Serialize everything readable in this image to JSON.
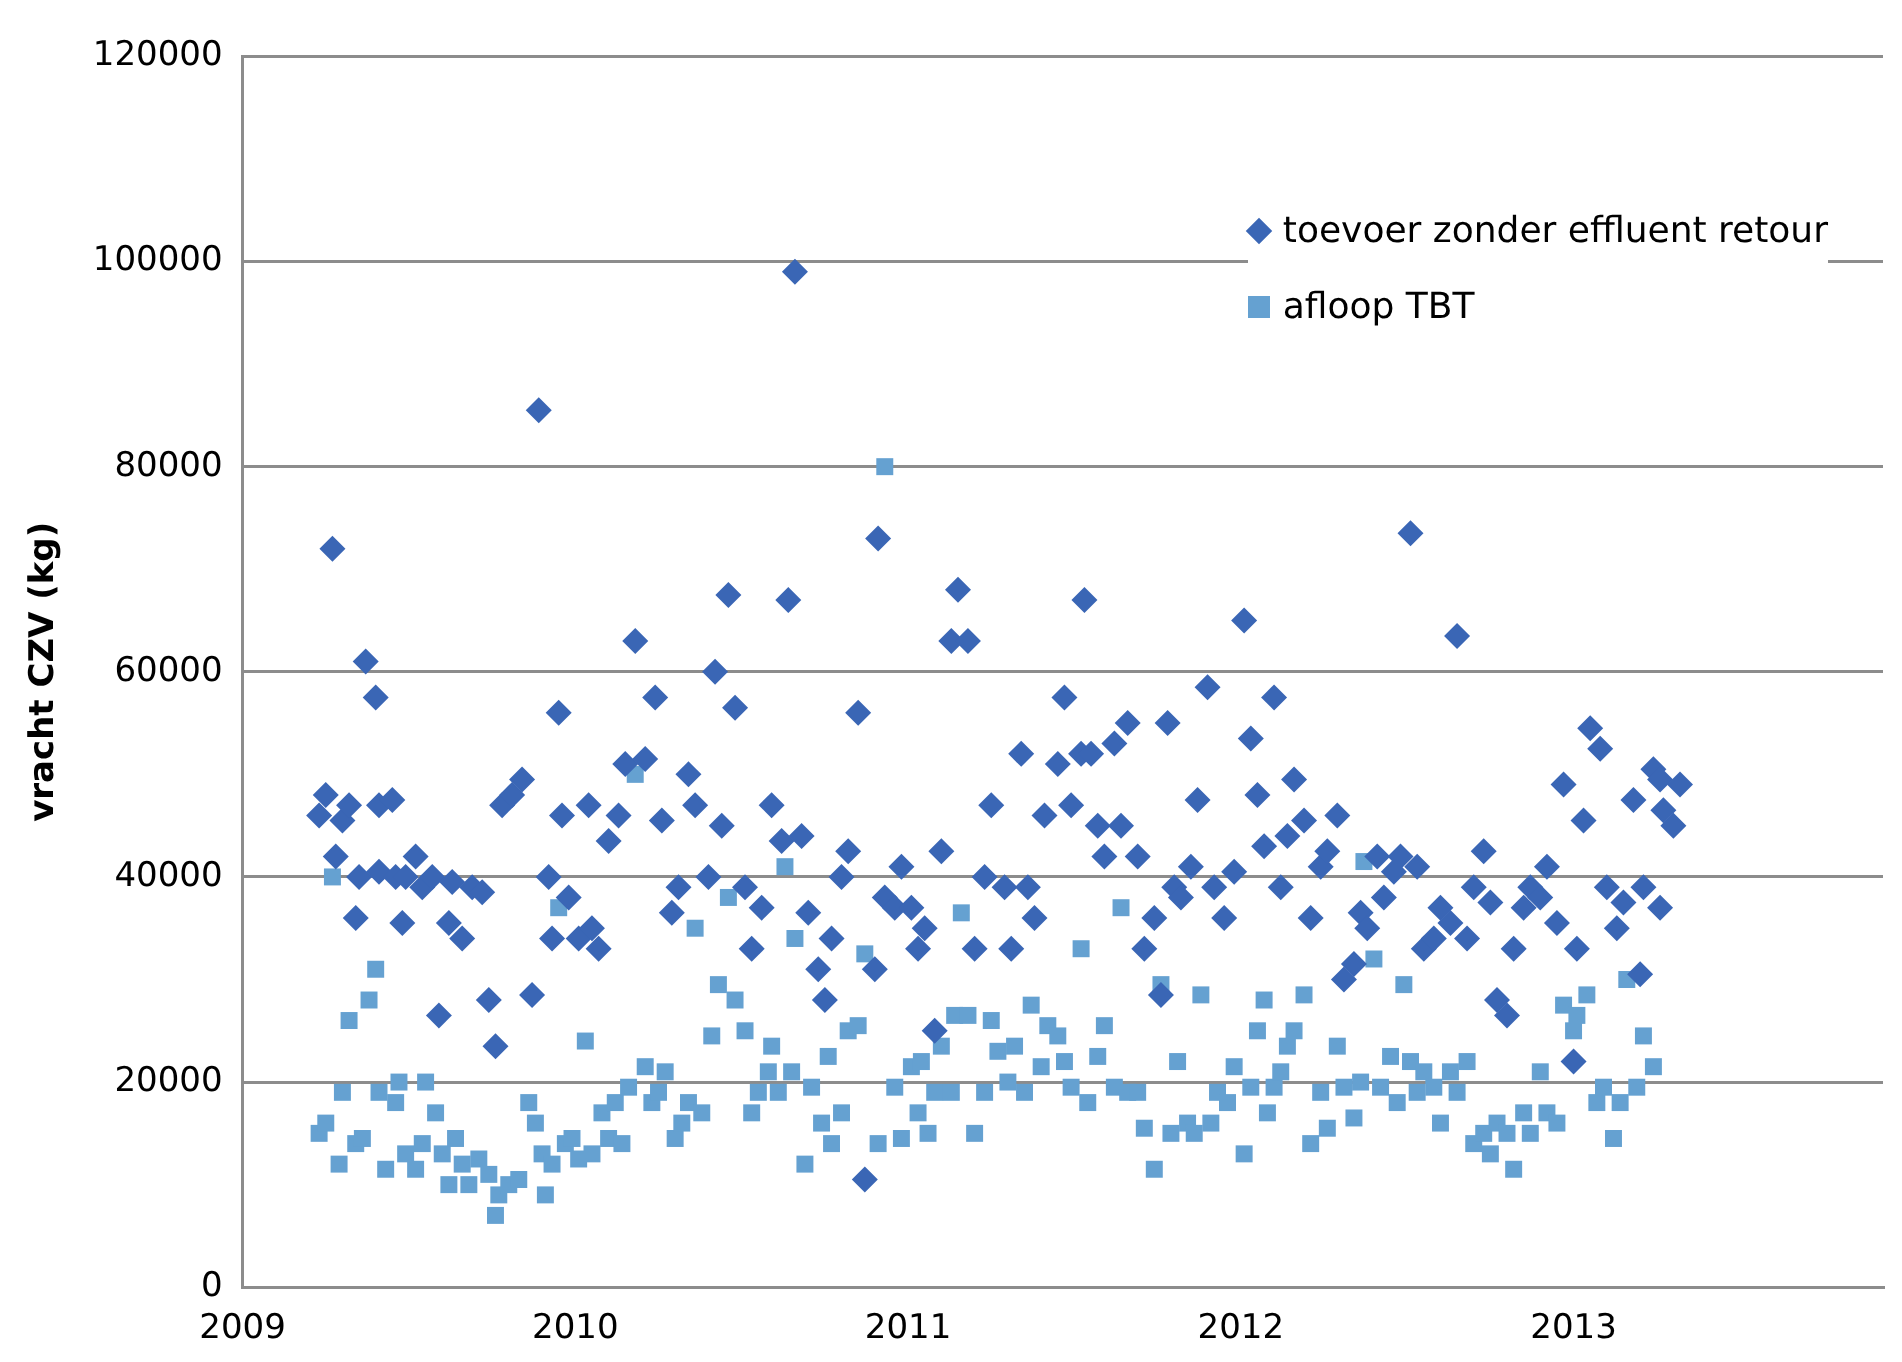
{
  "chart_data": {
    "type": "scatter",
    "ylabel": "vracht CZV (kg)",
    "xlim": [
      2009,
      2013.93
    ],
    "xticks": [
      2009,
      2010,
      2011,
      2012,
      2013
    ],
    "ylim": [
      0,
      120000
    ],
    "yticks": [
      0,
      20000,
      40000,
      60000,
      80000,
      100000,
      120000
    ],
    "grid": "y",
    "legend": "top right",
    "series": [
      {
        "name": "toevoer zonder effluent retour",
        "color": "#3a66b5",
        "marker": "diamond",
        "x": [
          2009.23,
          2009.25,
          2009.27,
          2009.28,
          2009.3,
          2009.32,
          2009.34,
          2009.35,
          2009.37,
          2009.4,
          2009.41,
          2009.41,
          2009.45,
          2009.46,
          2009.48,
          2009.49,
          2009.52,
          2009.54,
          2009.57,
          2009.59,
          2009.62,
          2009.63,
          2009.66,
          2009.69,
          2009.72,
          2009.74,
          2009.76,
          2009.78,
          2009.81,
          2009.84,
          2009.87,
          2009.89,
          2009.92,
          2009.93,
          2009.95,
          2009.96,
          2009.98,
          2010.01,
          2010.04,
          2010.05,
          2010.07,
          2010.1,
          2010.13,
          2010.15,
          2010.18,
          2010.21,
          2010.24,
          2010.26,
          2010.29,
          2010.31,
          2010.34,
          2010.36,
          2010.4,
          2010.42,
          2010.44,
          2010.46,
          2010.48,
          2010.51,
          2010.53,
          2010.56,
          2010.59,
          2010.62,
          2010.64,
          2010.66,
          2010.68,
          2010.7,
          2010.73,
          2010.75,
          2010.77,
          2010.8,
          2010.82,
          2010.85,
          2010.87,
          2010.9,
          2010.91,
          2010.93,
          2010.96,
          2010.98,
          2011.01,
          2011.03,
          2011.05,
          2011.08,
          2011.1,
          2011.13,
          2011.15,
          2011.18,
          2011.2,
          2011.23,
          2011.25,
          2011.29,
          2011.31,
          2011.34,
          2011.36,
          2011.38,
          2011.41,
          2011.45,
          2011.47,
          2011.49,
          2011.52,
          2011.53,
          2011.55,
          2011.57,
          2011.59,
          2011.62,
          2011.64,
          2011.66,
          2011.69,
          2011.71,
          2011.74,
          2011.76,
          2011.78,
          2011.8,
          2011.82,
          2011.85,
          2011.87,
          2011.9,
          2011.92,
          2011.95,
          2011.98,
          2012.01,
          2012.03,
          2012.05,
          2012.07,
          2012.1,
          2012.12,
          2012.14,
          2012.16,
          2012.19,
          2012.21,
          2012.24,
          2012.26,
          2012.29,
          2012.31,
          2012.34,
          2012.36,
          2012.38,
          2012.41,
          2012.43,
          2012.46,
          2012.48,
          2012.51,
          2012.53,
          2012.55,
          2012.58,
          2012.6,
          2012.63,
          2012.65,
          2012.68,
          2012.7,
          2012.73,
          2012.75,
          2012.77,
          2012.8,
          2012.82,
          2012.85,
          2012.87,
          2012.9,
          2012.92,
          2012.95,
          2012.97,
          2013.0,
          2013.01,
          2013.03,
          2013.05,
          2013.08,
          2013.1,
          2013.13,
          2013.15,
          2013.18,
          2013.2,
          2013.21,
          2013.24,
          2013.26,
          2013.27,
          2013.3,
          2013.32,
          2013.26
        ],
        "values": [
          46000,
          48000,
          72000,
          42000,
          45500,
          47000,
          36000,
          40000,
          61000,
          57500,
          47000,
          40500,
          47500,
          40000,
          35500,
          40000,
          42000,
          39000,
          40000,
          26500,
          35500,
          39500,
          34000,
          39000,
          38500,
          28000,
          23500,
          47000,
          48000,
          49500,
          28500,
          85500,
          40000,
          34000,
          56000,
          46000,
          38000,
          34000,
          47000,
          35000,
          33000,
          43500,
          46000,
          51000,
          63000,
          51500,
          57500,
          45500,
          36500,
          39000,
          50000,
          47000,
          40000,
          60000,
          45000,
          67500,
          56500,
          39000,
          33000,
          37000,
          47000,
          43500,
          67000,
          99000,
          44000,
          36500,
          31000,
          28000,
          34000,
          40000,
          42500,
          56000,
          10500,
          31000,
          73000,
          38000,
          37000,
          41000,
          37000,
          33000,
          35000,
          25000,
          42500,
          63000,
          68000,
          63000,
          33000,
          40000,
          47000,
          39000,
          33000,
          52000,
          39000,
          36000,
          46000,
          51000,
          57500,
          47000,
          52000,
          67000,
          52000,
          45000,
          42000,
          53000,
          45000,
          55000,
          42000,
          33000,
          36000,
          28500,
          55000,
          39000,
          38000,
          41000,
          47500,
          58500,
          39000,
          36000,
          40500,
          65000,
          53500,
          48000,
          43000,
          57500,
          39000,
          44000,
          49500,
          45500,
          36000,
          41000,
          42500,
          46000,
          30000,
          31500,
          36500,
          35000,
          42000,
          38000,
          40500,
          42000,
          73500,
          41000,
          33000,
          34000,
          37000,
          35500,
          63500,
          34000,
          39000,
          42500,
          37500,
          28000,
          26500,
          33000,
          37000,
          39000,
          38000,
          41000,
          35500,
          49000,
          22000,
          33000,
          45500,
          54500,
          52500,
          39000,
          35000,
          37500,
          47500,
          30500,
          39000,
          50500,
          49500,
          46500,
          45000,
          49000,
          37000
        ]
      },
      {
        "name": "afloop TBT",
        "color": "#65a1d1",
        "marker": "square",
        "x": [
          2009.23,
          2009.25,
          2009.27,
          2009.29,
          2009.3,
          2009.32,
          2009.34,
          2009.36,
          2009.38,
          2009.4,
          2009.41,
          2009.43,
          2009.46,
          2009.47,
          2009.49,
          2009.52,
          2009.54,
          2009.55,
          2009.58,
          2009.6,
          2009.62,
          2009.64,
          2009.66,
          2009.68,
          2009.71,
          2009.74,
          2009.76,
          2009.77,
          2009.8,
          2009.83,
          2009.86,
          2009.88,
          2009.9,
          2009.91,
          2009.93,
          2009.95,
          2009.97,
          2009.99,
          2010.01,
          2010.03,
          2010.05,
          2010.08,
          2010.1,
          2010.12,
          2010.14,
          2010.16,
          2010.18,
          2010.21,
          2010.23,
          2010.25,
          2010.27,
          2010.3,
          2010.32,
          2010.34,
          2010.36,
          2010.38,
          2010.41,
          2010.43,
          2010.46,
          2010.48,
          2010.51,
          2010.53,
          2010.55,
          2010.58,
          2010.59,
          2010.61,
          2010.63,
          2010.65,
          2010.66,
          2010.69,
          2010.71,
          2010.74,
          2010.76,
          2010.77,
          2010.8,
          2010.82,
          2010.85,
          2010.87,
          2010.91,
          2010.93,
          2010.96,
          2010.98,
          2011.01,
          2011.03,
          2011.04,
          2011.06,
          2011.08,
          2011.1,
          2011.13,
          2011.14,
          2011.16,
          2011.18,
          2011.2,
          2011.23,
          2011.25,
          2011.27,
          2011.3,
          2011.32,
          2011.35,
          2011.37,
          2011.4,
          2011.42,
          2011.45,
          2011.47,
          2011.49,
          2011.52,
          2011.54,
          2011.57,
          2011.59,
          2011.62,
          2011.64,
          2011.66,
          2011.69,
          2011.71,
          2011.74,
          2011.76,
          2011.79,
          2011.81,
          2011.84,
          2011.86,
          2011.88,
          2011.91,
          2011.93,
          2011.96,
          2011.98,
          2012.01,
          2012.03,
          2012.05,
          2012.07,
          2012.08,
          2012.1,
          2012.12,
          2012.14,
          2012.16,
          2012.19,
          2012.21,
          2012.24,
          2012.26,
          2012.29,
          2012.31,
          2012.34,
          2012.36,
          2012.37,
          2012.4,
          2012.42,
          2012.45,
          2012.47,
          2012.49,
          2012.51,
          2012.53,
          2012.55,
          2012.58,
          2012.6,
          2012.63,
          2012.65,
          2012.68,
          2012.7,
          2012.73,
          2012.75,
          2012.77,
          2012.8,
          2012.82,
          2012.85,
          2012.87,
          2012.9,
          2012.92,
          2012.95,
          2012.97,
          2013.0,
          2013.01,
          2013.04,
          2013.07,
          2013.09,
          2013.12,
          2013.14,
          2013.16,
          2013.19,
          2013.21,
          2013.24
        ],
        "values": [
          15000,
          16000,
          40000,
          12000,
          19000,
          26000,
          14000,
          14500,
          28000,
          31000,
          19000,
          11500,
          18000,
          20000,
          13000,
          11500,
          14000,
          20000,
          17000,
          13000,
          10000,
          14500,
          12000,
          10000,
          12500,
          11000,
          7000,
          9000,
          10000,
          10500,
          18000,
          16000,
          13000,
          9000,
          12000,
          37000,
          14000,
          14500,
          12500,
          24000,
          13000,
          17000,
          14500,
          18000,
          14000,
          19500,
          50000,
          21500,
          18000,
          19000,
          21000,
          14500,
          16000,
          18000,
          35000,
          17000,
          24500,
          29500,
          38000,
          28000,
          25000,
          17000,
          19000,
          21000,
          23500,
          19000,
          41000,
          21000,
          34000,
          12000,
          19500,
          16000,
          22500,
          14000,
          17000,
          25000,
          25500,
          32500,
          14000,
          80000,
          19500,
          14500,
          21500,
          17000,
          22000,
          15000,
          19000,
          23500,
          19000,
          26500,
          36500,
          26500,
          15000,
          19000,
          26000,
          23000,
          20000,
          23500,
          19000,
          27500,
          21500,
          25500,
          24500,
          22000,
          19500,
          33000,
          18000,
          22500,
          25500,
          19500,
          37000,
          19000,
          19000,
          15500,
          11500,
          29500,
          15000,
          22000,
          16000,
          15000,
          28500,
          16000,
          19000,
          18000,
          21500,
          13000,
          19500,
          25000,
          28000,
          17000,
          19500,
          21000,
          23500,
          25000,
          28500,
          14000,
          19000,
          15500,
          23500,
          19500,
          16500,
          20000,
          41500,
          32000,
          19500,
          22500,
          18000,
          29500,
          22000,
          19000,
          21000,
          19500,
          16000,
          21000,
          19000,
          22000,
          14000,
          15000,
          13000,
          16000,
          15000,
          11500,
          17000,
          15000,
          21000,
          17000,
          16000,
          27500,
          25000,
          26500,
          28500,
          18000,
          19500,
          14500,
          18000,
          30000,
          19500,
          24500,
          21500
        ]
      }
    ]
  }
}
